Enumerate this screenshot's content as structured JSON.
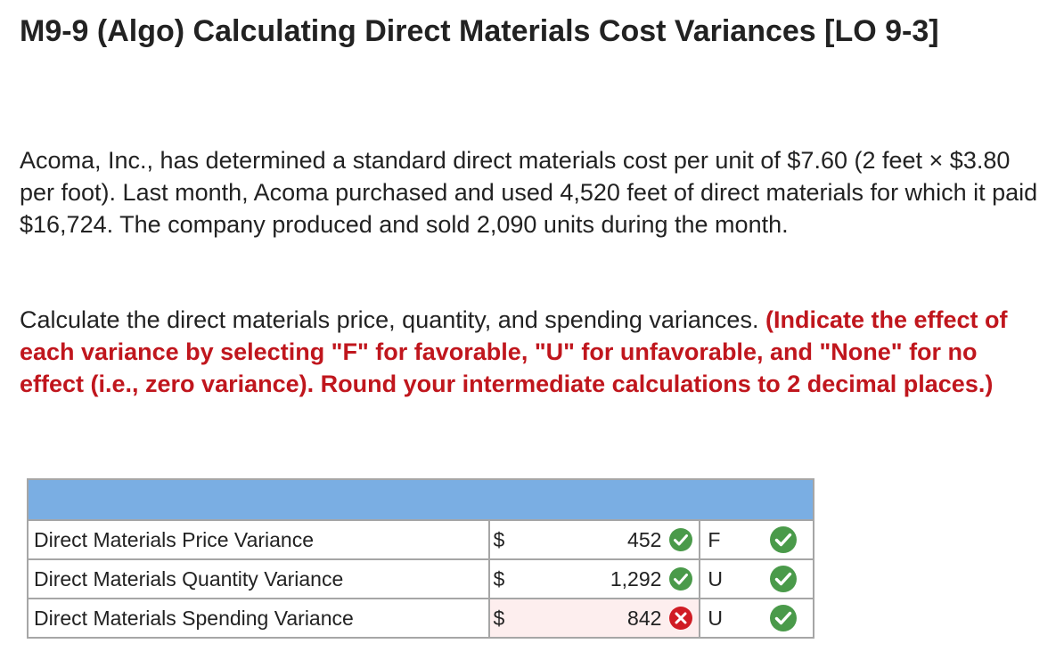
{
  "title": "M9-9 (Algo) Calculating Direct Materials Cost Variances [LO 9-3]",
  "problem_text": "Acoma, Inc., has determined a standard direct materials cost per unit of $7.60 (2 feet × $3.80 per foot). Last month, Acoma purchased and used 4,520 feet of direct materials for which it paid $16,724. The company produced and sold 2,090 units during the month.",
  "instruction": {
    "text": "Calculate the direct materials price, quantity, and spending variances.",
    "emphasis": "(Indicate the effect of each variance by selecting \"F\" for favorable, \"U\" for unfavorable, and \"None\" for no effect (i.e., zero variance). Round your intermediate calculations to 2 decimal places.)"
  },
  "table": {
    "header_color": "#7aaee3",
    "rows": [
      {
        "label": "Direct Materials Price Variance",
        "currency": "$",
        "value": "452",
        "value_status": "correct",
        "effect": "F",
        "effect_status": "correct"
      },
      {
        "label": "Direct Materials Quantity Variance",
        "currency": "$",
        "value": "1,292",
        "value_status": "correct",
        "effect": "U",
        "effect_status": "correct"
      },
      {
        "label": "Direct Materials Spending Variance",
        "currency": "$",
        "value": "842",
        "value_status": "incorrect",
        "effect": "U",
        "effect_status": "correct"
      }
    ]
  },
  "colors": {
    "correct": "#4a9a4a",
    "incorrect": "#d01c24",
    "emphasis_text": "#c0161d"
  },
  "icons": {
    "correct": "check-circle-icon",
    "incorrect": "x-circle-icon"
  }
}
